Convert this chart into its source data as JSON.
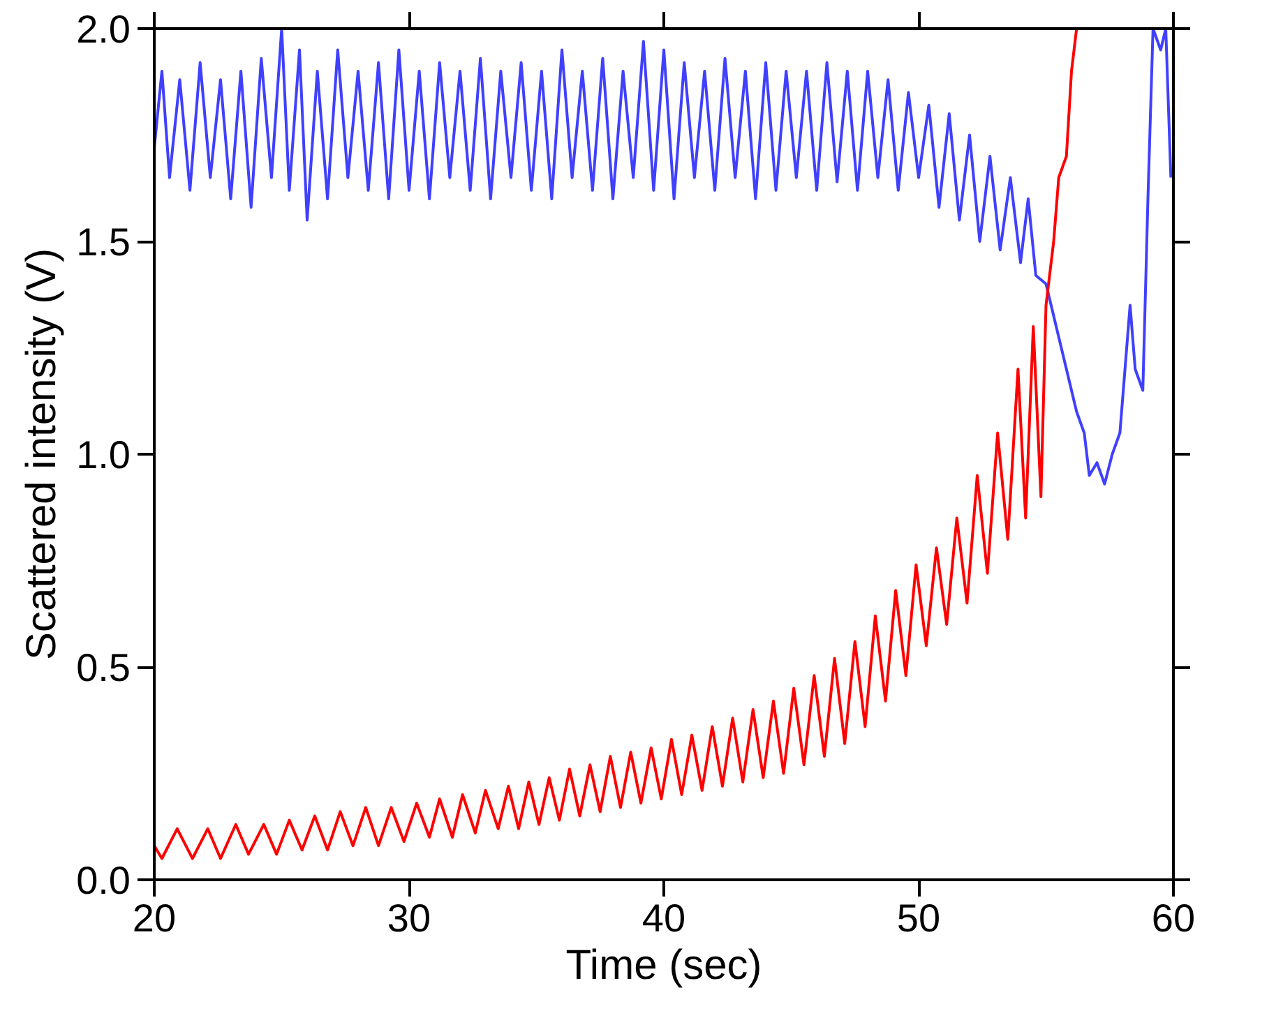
{
  "chart_data": {
    "type": "line",
    "xlabel": "Time (sec)",
    "ylabel": "Scattered intensity (V)",
    "xlim": [
      20,
      60
    ],
    "ylim": [
      0,
      2.0
    ],
    "xticks": [
      20,
      30,
      40,
      50,
      60
    ],
    "yticks": [
      {
        "value": 0,
        "label": "0.0"
      },
      0.5,
      {
        "value": 1.0,
        "label": "1.0"
      },
      1.5,
      {
        "value": 2.0,
        "label": "2.0"
      }
    ],
    "grid": false,
    "line_style": "solid",
    "series": [
      {
        "color": "#4040ff",
        "x": [
          20.0,
          20.3,
          20.6,
          21.0,
          21.4,
          21.8,
          22.2,
          22.6,
          23.0,
          23.4,
          23.8,
          24.2,
          24.6,
          25.0,
          25.3,
          25.7,
          26.0,
          26.4,
          26.8,
          27.2,
          27.6,
          28.0,
          28.4,
          28.8,
          29.2,
          29.6,
          30.0,
          30.4,
          30.8,
          31.2,
          31.6,
          32.0,
          32.4,
          32.8,
          33.2,
          33.6,
          34.0,
          34.4,
          34.8,
          35.2,
          35.6,
          36.0,
          36.4,
          36.8,
          37.2,
          37.6,
          38.0,
          38.4,
          38.8,
          39.2,
          39.6,
          40.0,
          40.4,
          40.8,
          41.2,
          41.6,
          42.0,
          42.4,
          42.8,
          43.2,
          43.6,
          44.0,
          44.4,
          44.8,
          45.2,
          45.6,
          46.0,
          46.4,
          46.8,
          47.2,
          47.6,
          48.0,
          48.4,
          48.8,
          49.2,
          49.6,
          50.0,
          50.4,
          50.8,
          51.2,
          51.6,
          52.0,
          52.4,
          52.8,
          53.2,
          53.6,
          54.0,
          54.3,
          54.6,
          55.0,
          55.4,
          55.8,
          56.2,
          56.5,
          56.7,
          57.0,
          57.3,
          57.6,
          57.9,
          58.1,
          58.3,
          58.5,
          58.8,
          59.0,
          59.2,
          59.5,
          59.7,
          59.9
        ],
        "values": [
          1.72,
          1.9,
          1.65,
          1.88,
          1.62,
          1.92,
          1.65,
          1.88,
          1.6,
          1.9,
          1.58,
          1.93,
          1.65,
          2.0,
          1.62,
          1.95,
          1.55,
          1.9,
          1.6,
          1.95,
          1.65,
          1.9,
          1.62,
          1.92,
          1.6,
          1.95,
          1.62,
          1.9,
          1.6,
          1.92,
          1.65,
          1.9,
          1.62,
          1.93,
          1.6,
          1.9,
          1.65,
          1.92,
          1.62,
          1.9,
          1.6,
          1.95,
          1.65,
          1.9,
          1.62,
          1.93,
          1.6,
          1.9,
          1.65,
          1.97,
          1.62,
          1.95,
          1.6,
          1.92,
          1.65,
          1.9,
          1.62,
          1.93,
          1.65,
          1.9,
          1.6,
          1.92,
          1.62,
          1.9,
          1.65,
          1.9,
          1.62,
          1.92,
          1.64,
          1.9,
          1.62,
          1.9,
          1.65,
          1.88,
          1.62,
          1.85,
          1.65,
          1.82,
          1.58,
          1.8,
          1.55,
          1.75,
          1.5,
          1.7,
          1.48,
          1.65,
          1.45,
          1.6,
          1.42,
          1.4,
          1.3,
          1.2,
          1.1,
          1.05,
          0.95,
          0.98,
          0.93,
          1.0,
          1.05,
          1.2,
          1.35,
          1.2,
          1.15,
          1.6,
          2.0,
          1.95,
          2.0,
          1.65
        ]
      },
      {
        "color": "#ff0000",
        "x": [
          20.0,
          20.3,
          20.9,
          21.5,
          22.1,
          22.6,
          23.2,
          23.7,
          24.3,
          24.8,
          25.3,
          25.8,
          26.3,
          26.8,
          27.3,
          27.8,
          28.3,
          28.8,
          29.3,
          29.8,
          30.3,
          30.8,
          31.2,
          31.7,
          32.1,
          32.6,
          33.0,
          33.5,
          33.9,
          34.3,
          34.7,
          35.1,
          35.5,
          35.9,
          36.3,
          36.7,
          37.1,
          37.5,
          37.9,
          38.3,
          38.7,
          39.1,
          39.5,
          39.9,
          40.3,
          40.7,
          41.1,
          41.5,
          41.9,
          42.3,
          42.7,
          43.1,
          43.5,
          43.9,
          44.3,
          44.7,
          45.1,
          45.5,
          45.9,
          46.3,
          46.7,
          47.1,
          47.5,
          47.9,
          48.3,
          48.7,
          49.1,
          49.5,
          49.9,
          50.3,
          50.7,
          51.1,
          51.5,
          51.9,
          52.3,
          52.7,
          53.1,
          53.5,
          53.9,
          54.2,
          54.5,
          54.8,
          55.0,
          55.3,
          55.5,
          55.8,
          56.0,
          56.2
        ],
        "values": [
          0.08,
          0.05,
          0.12,
          0.05,
          0.12,
          0.05,
          0.13,
          0.06,
          0.13,
          0.06,
          0.14,
          0.07,
          0.15,
          0.07,
          0.16,
          0.08,
          0.17,
          0.08,
          0.17,
          0.09,
          0.18,
          0.1,
          0.19,
          0.1,
          0.2,
          0.11,
          0.21,
          0.12,
          0.22,
          0.12,
          0.23,
          0.13,
          0.24,
          0.14,
          0.26,
          0.15,
          0.27,
          0.16,
          0.29,
          0.17,
          0.3,
          0.18,
          0.31,
          0.19,
          0.33,
          0.2,
          0.34,
          0.21,
          0.36,
          0.22,
          0.38,
          0.23,
          0.4,
          0.24,
          0.42,
          0.25,
          0.45,
          0.27,
          0.48,
          0.29,
          0.52,
          0.32,
          0.56,
          0.36,
          0.62,
          0.42,
          0.68,
          0.48,
          0.74,
          0.55,
          0.78,
          0.6,
          0.85,
          0.65,
          0.95,
          0.72,
          1.05,
          0.8,
          1.2,
          0.85,
          1.3,
          0.9,
          1.35,
          1.5,
          1.65,
          1.7,
          1.9,
          2.0
        ]
      }
    ]
  }
}
